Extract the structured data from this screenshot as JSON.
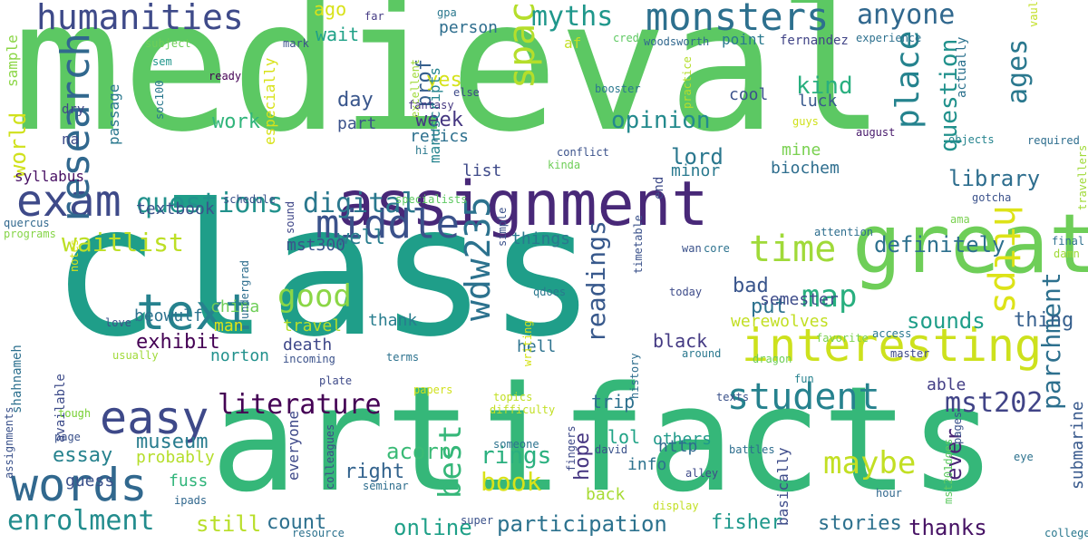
{
  "words": [
    {
      "text": "medieval",
      "color": "#5cc863"
    },
    {
      "text": "class",
      "color": "#1f9e89"
    },
    {
      "text": "artifacts",
      "color": "#35b779"
    },
    {
      "text": "assignment",
      "color": "#482878"
    },
    {
      "text": "great",
      "color": "#6ece58"
    },
    {
      "text": "exam",
      "color": "#3e4a89"
    },
    {
      "text": "text",
      "color": "#26828e"
    },
    {
      "text": "words",
      "color": "#31688e"
    },
    {
      "text": "research",
      "color": "#31688e"
    },
    {
      "text": "easy",
      "color": "#3e4989"
    },
    {
      "text": "interesting",
      "color": "#cde11d"
    },
    {
      "text": "humanities",
      "color": "#3e4a89"
    },
    {
      "text": "monsters",
      "color": "#2d708e"
    },
    {
      "text": "student",
      "color": "#26828e"
    },
    {
      "text": "literature",
      "color": "#440154"
    },
    {
      "text": "middle",
      "color": "#3b528b"
    },
    {
      "text": "time",
      "color": "#a0da39"
    },
    {
      "text": "https",
      "color": "#dde318"
    },
    {
      "text": "space",
      "color": "#b5de2b"
    },
    {
      "text": "wdw235",
      "color": "#2c728e"
    },
    {
      "text": "questions",
      "color": "#21918c"
    },
    {
      "text": "digital",
      "color": "#2a788e"
    },
    {
      "text": "place",
      "color": "#25838e"
    },
    {
      "text": "question",
      "color": "#21918c"
    },
    {
      "text": "parchment",
      "color": "#2d708e"
    },
    {
      "text": "ages",
      "color": "#2a788e"
    },
    {
      "text": "anyone",
      "color": "#31688e"
    },
    {
      "text": "myths",
      "color": "#1f978b"
    },
    {
      "text": "waitlist",
      "color": "#bddf26"
    },
    {
      "text": "readings",
      "color": "#38598c"
    },
    {
      "text": "map",
      "color": "#29af7f"
    },
    {
      "text": "mst202",
      "color": "#414487"
    },
    {
      "text": "best",
      "color": "#35b779"
    },
    {
      "text": "maybe",
      "color": "#c2df23"
    },
    {
      "text": "enrolment",
      "color": "#228c8d"
    },
    {
      "text": "participation",
      "color": "#2c728e"
    },
    {
      "text": "good",
      "color": "#8bd646"
    },
    {
      "text": "definitely",
      "color": "#2d708e"
    },
    {
      "text": "library",
      "color": "#2e6e8e"
    },
    {
      "text": "sounds",
      "color": "#1f9e89"
    },
    {
      "text": "book",
      "color": "#d8e219"
    },
    {
      "text": "rings",
      "color": "#2ab07f"
    },
    {
      "text": "opinion",
      "color": "#238a8d"
    },
    {
      "text": "world",
      "color": "#d0e11c"
    },
    {
      "text": "kind",
      "color": "#29af7f"
    },
    {
      "text": "lord",
      "color": "#2a778e"
    },
    {
      "text": "exhibit",
      "color": "#440154"
    },
    {
      "text": "acorn",
      "color": "#3aba76"
    },
    {
      "text": "museum",
      "color": "#287c8e"
    },
    {
      "text": "essay",
      "color": "#26828e"
    },
    {
      "text": "count",
      "color": "#2d708e"
    },
    {
      "text": "online",
      "color": "#1fa088"
    },
    {
      "text": "stories",
      "color": "#2d718e"
    },
    {
      "text": "thanks",
      "color": "#471365"
    },
    {
      "text": "fisher",
      "color": "#1f988b"
    },
    {
      "text": "still",
      "color": "#b8de29"
    },
    {
      "text": "right",
      "color": "#33638d"
    },
    {
      "text": "week",
      "color": "#453781"
    },
    {
      "text": "thing",
      "color": "#355f8d"
    },
    {
      "text": "put",
      "color": "#2c728e"
    },
    {
      "text": "bad",
      "color": "#39558c"
    },
    {
      "text": "ever",
      "color": "#482475"
    },
    {
      "text": "submarine",
      "color": "#38598c"
    },
    {
      "text": "hope",
      "color": "#453581"
    },
    {
      "text": "work",
      "color": "#31b57b"
    },
    {
      "text": "day",
      "color": "#39568c"
    },
    {
      "text": "cool",
      "color": "#3b528b"
    },
    {
      "text": "prof",
      "color": "#355f8d"
    },
    {
      "text": "yes",
      "color": "#d5e21a"
    },
    {
      "text": "ago",
      "color": "#d8e219"
    },
    {
      "text": "wait",
      "color": "#1fa187"
    },
    {
      "text": "person",
      "color": "#2e6e8e"
    },
    {
      "text": "point",
      "color": "#29798e"
    },
    {
      "text": "fernandez",
      "color": "#414487"
    },
    {
      "text": "man",
      "color": "#dde318"
    },
    {
      "text": "china",
      "color": "#6ece58"
    },
    {
      "text": "textbook",
      "color": "#3b528b"
    },
    {
      "text": "things",
      "color": "#2a788e"
    },
    {
      "text": "syllabus",
      "color": "#471063"
    },
    {
      "text": "well",
      "color": "#287d8e"
    },
    {
      "text": "mst300",
      "color": "#3b528b"
    },
    {
      "text": "beowulf",
      "color": "#2c728e"
    },
    {
      "text": "death",
      "color": "#3f4889"
    },
    {
      "text": "travel",
      "color": "#b5de2b"
    },
    {
      "text": "norton",
      "color": "#21918c"
    },
    {
      "text": "thank",
      "color": "#287d8e"
    },
    {
      "text": "black",
      "color": "#443a83"
    },
    {
      "text": "werewolves",
      "color": "#c2df23"
    },
    {
      "text": "semester",
      "color": "#3e4c8a"
    },
    {
      "text": "biochem",
      "color": "#2e6e8e"
    },
    {
      "text": "mine",
      "color": "#7ad151"
    },
    {
      "text": "minor",
      "color": "#29798e"
    },
    {
      "text": "luck",
      "color": "#38598c"
    },
    {
      "text": "others",
      "color": "#1f9a8a"
    },
    {
      "text": "trip",
      "color": "#2d718e"
    },
    {
      "text": "lol",
      "color": "#20a386"
    },
    {
      "text": "info",
      "color": "#2c728e"
    },
    {
      "text": "back",
      "color": "#a8db34"
    },
    {
      "text": "http",
      "color": "#2f6b8e"
    },
    {
      "text": "probably",
      "color": "#b5de2b"
    },
    {
      "text": "guess",
      "color": "#3b518b"
    },
    {
      "text": "fuss",
      "color": "#31b57b"
    },
    {
      "text": "hell",
      "color": "#2c728e"
    },
    {
      "text": "list",
      "color": "#3e4a89"
    },
    {
      "text": "able",
      "color": "#433e85"
    },
    {
      "text": "basically",
      "color": "#3e4c8a"
    },
    {
      "text": "everyone",
      "color": "#3e4989"
    },
    {
      "text": "especially",
      "color": "#d8e219"
    },
    {
      "text": "passage",
      "color": "#2a788e"
    },
    {
      "text": "part",
      "color": "#3b528b"
    },
    {
      "text": "na",
      "color": "#3e4a89"
    },
    {
      "text": "dry",
      "color": "#3f4788"
    },
    {
      "text": "af",
      "color": "#c2df23"
    },
    {
      "text": "relics",
      "color": "#2d708e"
    },
    {
      "text": "manuscripts",
      "color": "#25848e"
    },
    {
      "text": "sample",
      "color": "#8bd646"
    },
    {
      "text": "subject",
      "color": "#6ece58"
    },
    {
      "text": "sem",
      "color": "#1f968b"
    },
    {
      "text": "soc100",
      "color": "#2a788e"
    },
    {
      "text": "ready",
      "color": "#440154"
    },
    {
      "text": "far",
      "color": "#443a83"
    },
    {
      "text": "gpa",
      "color": "#2a788e"
    },
    {
      "text": "mark",
      "color": "#3b528b"
    },
    {
      "text": "credit",
      "color": "#5ec962"
    },
    {
      "text": "woodsworth",
      "color": "#31688e"
    },
    {
      "text": "experience",
      "color": "#2d708e"
    },
    {
      "text": "excellent",
      "color": "#a0da39"
    },
    {
      "text": "else",
      "color": "#3e4a89"
    },
    {
      "text": "fantasy",
      "color": "#453781"
    },
    {
      "text": "hi",
      "color": "#2a788e"
    },
    {
      "text": "booster",
      "color": "#2a788e"
    },
    {
      "text": "practice",
      "color": "#b5de2b"
    },
    {
      "text": "actually",
      "color": "#2c728e"
    },
    {
      "text": "conflict",
      "color": "#3b528b"
    },
    {
      "text": "kinda",
      "color": "#6ece58"
    },
    {
      "text": "guys",
      "color": "#d0e11c"
    },
    {
      "text": "august",
      "color": "#481a6c"
    },
    {
      "text": "objects",
      "color": "#25848e"
    },
    {
      "text": "required",
      "color": "#2e6e8e"
    },
    {
      "text": "vault",
      "color": "#c2df23"
    },
    {
      "text": "travellers",
      "color": "#a0da39"
    },
    {
      "text": "gotcha",
      "color": "#3b528b"
    },
    {
      "text": "ama",
      "color": "#7ad151"
    },
    {
      "text": "end",
      "color": "#3e4a89"
    },
    {
      "text": "schedule",
      "color": "#3b528b"
    },
    {
      "text": "specialists",
      "color": "#5ec962"
    },
    {
      "text": "quercus",
      "color": "#31688e"
    },
    {
      "text": "programs",
      "color": "#86d549"
    },
    {
      "text": "notes",
      "color": "#d8e219"
    },
    {
      "text": "sound",
      "color": "#3f4788"
    },
    {
      "text": "undergrad",
      "color": "#2e6e8e"
    },
    {
      "text": "simple",
      "color": "#3b528b"
    },
    {
      "text": "wan",
      "color": "#3b528b"
    },
    {
      "text": "core",
      "color": "#2c728e"
    },
    {
      "text": "attention",
      "color": "#2e6e8e"
    },
    {
      "text": "final",
      "color": "#2d708e"
    },
    {
      "text": "damn",
      "color": "#a0da39"
    },
    {
      "text": "timetable",
      "color": "#3b528b"
    },
    {
      "text": "qdoes",
      "color": "#2a788e"
    },
    {
      "text": "today",
      "color": "#3e4c8a"
    },
    {
      "text": "love",
      "color": "#3b528b"
    },
    {
      "text": "usually",
      "color": "#a0da39"
    },
    {
      "text": "writing",
      "color": "#d5e21a"
    },
    {
      "text": "dragon",
      "color": "#6ece58"
    },
    {
      "text": "favorite",
      "color": "#7ad151"
    },
    {
      "text": "access",
      "color": "#2a788e"
    },
    {
      "text": "incoming",
      "color": "#3b528b"
    },
    {
      "text": "terms",
      "color": "#2c728e"
    },
    {
      "text": "around",
      "color": "#2a788e"
    },
    {
      "text": "master",
      "color": "#3e4a89"
    },
    {
      "text": "history",
      "color": "#2e6e8e"
    },
    {
      "text": "fun",
      "color": "#26828e"
    },
    {
      "text": "shahnameh",
      "color": "#2d708e"
    },
    {
      "text": "available",
      "color": "#3e4c8a"
    },
    {
      "text": "assignments",
      "color": "#3b528b"
    },
    {
      "text": "tough",
      "color": "#86d549"
    },
    {
      "text": "page",
      "color": "#3b528b"
    },
    {
      "text": "plate",
      "color": "#3e4a89"
    },
    {
      "text": "papers",
      "color": "#d0e11c"
    },
    {
      "text": "topics",
      "color": "#c2df23"
    },
    {
      "text": "difficulty",
      "color": "#c2df23"
    },
    {
      "text": "texts",
      "color": "#3b528b"
    },
    {
      "text": "tough",
      "color": "#86d549"
    },
    {
      "text": "colleagues",
      "color": "#3e4a89"
    },
    {
      "text": "seminar",
      "color": "#2e6e8e"
    },
    {
      "text": "fingers",
      "color": "#3e4a89"
    },
    {
      "text": "someone",
      "color": "#2c728e"
    },
    {
      "text": "david",
      "color": "#3b528b"
    },
    {
      "text": "alley",
      "color": "#3e4a89"
    },
    {
      "text": "battles",
      "color": "#2e6e8e"
    },
    {
      "text": "pages",
      "color": "#3b528b"
    },
    {
      "text": "mst201does",
      "color": "#5ec962"
    },
    {
      "text": "eye",
      "color": "#2c728e"
    },
    {
      "text": "hour",
      "color": "#31688e"
    },
    {
      "text": "display",
      "color": "#c2df23"
    },
    {
      "text": "super",
      "color": "#3b528b"
    },
    {
      "text": "resource",
      "color": "#2c728e"
    },
    {
      "text": "ipads",
      "color": "#31688e"
    },
    {
      "text": "college",
      "color": "#2a788e"
    }
  ]
}
